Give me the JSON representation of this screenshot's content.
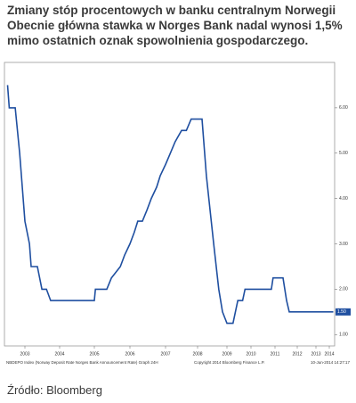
{
  "header": {
    "lines": [
      "Zmiany stóp procentowych w banku centralnym Norwegii",
      "Obecnie główna stawka w Norges Bank nadal wynosi 1,5%",
      "mimo ostatnich oznak spowolnienia gospodarczego."
    ]
  },
  "chart_data": {
    "type": "line",
    "color": "#1f4fa0",
    "x": [
      2002.5,
      2002.55,
      2002.72,
      2002.85,
      2003.0,
      2003.13,
      2003.18,
      2003.36,
      2003.49,
      2003.62,
      2003.74,
      2005.0,
      2005.03,
      2005.35,
      2005.48,
      2005.73,
      2005.85,
      2006.0,
      2006.12,
      2006.22,
      2006.35,
      2006.48,
      2006.6,
      2006.75,
      2006.85,
      2007.0,
      2007.15,
      2007.3,
      2007.5,
      2007.65,
      2007.8,
      2008.15,
      2008.3,
      2008.55,
      2008.72,
      2008.85,
      2009.0,
      2009.25,
      2009.45,
      2009.65,
      2009.75,
      2010.85,
      2010.92,
      2011.36,
      2011.52,
      2011.64,
      2014.3
    ],
    "values": [
      6.5,
      6.0,
      6.0,
      5.0,
      3.5,
      3.0,
      2.5,
      2.5,
      2.0,
      2.0,
      1.75,
      1.75,
      2.0,
      2.0,
      2.25,
      2.5,
      2.75,
      3.0,
      3.25,
      3.5,
      3.5,
      3.75,
      4.0,
      4.25,
      4.5,
      4.75,
      5.0,
      5.25,
      5.5,
      5.5,
      5.75,
      5.75,
      4.5,
      3.0,
      2.0,
      1.5,
      1.25,
      1.25,
      1.75,
      1.75,
      2.0,
      2.0,
      2.25,
      2.25,
      1.75,
      1.5,
      1.5
    ],
    "end_label": "1.50",
    "xlim": [
      2002.5,
      2014.3
    ],
    "xticks": [
      2003,
      2004,
      2005,
      2006,
      2007,
      2008,
      2009,
      2010,
      2011,
      2012,
      2013,
      2014
    ],
    "ylim": [
      0.75,
      7
    ],
    "yticks": [
      {
        "value": 1,
        "label": "1.00"
      },
      {
        "value": 2,
        "label": "2.00"
      },
      {
        "value": 3,
        "label": "3.00"
      },
      {
        "value": 4,
        "label": "4.00"
      },
      {
        "value": 5,
        "label": "5.00"
      },
      {
        "value": 6,
        "label": "6.00"
      }
    ],
    "footer_left": "NBDEPO Index (Norway Deposit Rate Norges Bank Announcement Rate) Graph 24H",
    "footer_mid": "Copyright 2014 Bloomberg Finance L.P.",
    "footer_right": "10-Jun-2014 14:27:17"
  },
  "source": "Źródło: Bloomberg"
}
